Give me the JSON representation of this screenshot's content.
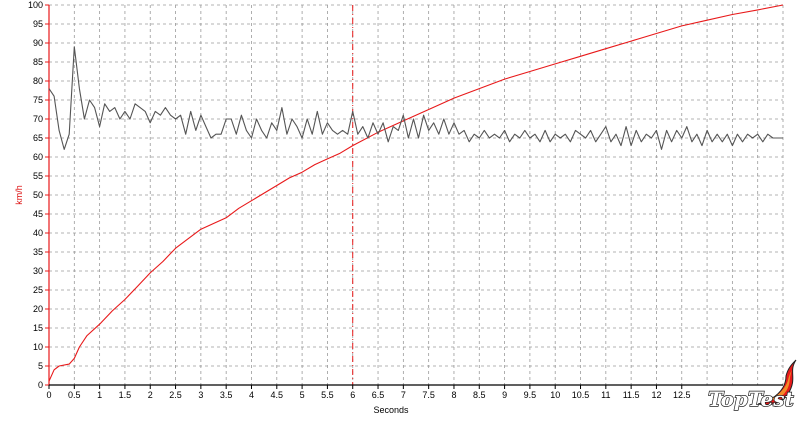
{
  "chart_data": {
    "type": "line",
    "xlabel": "Seconds",
    "ylabel": "km/h",
    "xlim": [
      0,
      14.5
    ],
    "ylim": [
      0,
      100
    ],
    "x_ticks": [
      "0",
      "0.5",
      "1",
      "1.5",
      "2",
      "2.5",
      "3",
      "3.5",
      "4",
      "4.5",
      "5",
      "5.5",
      "6",
      "6.5",
      "7",
      "7.5",
      "8",
      "8.5",
      "9",
      "9.5",
      "10",
      "10.5",
      "11",
      "11.5",
      "12",
      "12.5"
    ],
    "y_ticks": [
      "0",
      "5",
      "10",
      "15",
      "20",
      "25",
      "30",
      "35",
      "40",
      "45",
      "50",
      "55",
      "60",
      "65",
      "70",
      "75",
      "80",
      "85",
      "90",
      "95",
      "100"
    ],
    "grid": true,
    "marker_x": 6,
    "series": [
      {
        "color": "#e8191a",
        "x": [
          0,
          0.1,
          0.2,
          0.4,
          0.5,
          0.6,
          0.75,
          1,
          1.25,
          1.5,
          1.75,
          2,
          2.25,
          2.5,
          2.75,
          3,
          3.25,
          3.5,
          3.75,
          4,
          4.25,
          4.5,
          4.75,
          5,
          5.25,
          5.5,
          5.75,
          6,
          6.5,
          7,
          7.5,
          8,
          8.5,
          9,
          9.5,
          10,
          10.5,
          11,
          11.5,
          12,
          12.5,
          13,
          13.5,
          14,
          14.5
        ],
        "y": [
          1,
          4,
          5,
          5.5,
          7,
          10,
          13,
          16,
          19.5,
          22.5,
          26,
          29.5,
          32.5,
          36,
          38.5,
          41,
          42.5,
          44,
          46.5,
          48.5,
          50.5,
          52.5,
          54.5,
          56,
          58,
          59.5,
          61,
          63,
          66.5,
          69.5,
          72.5,
          75.5,
          78,
          80.5,
          82.5,
          84.5,
          86.5,
          88.5,
          90.5,
          92.5,
          94.5,
          96,
          97.5,
          98.7,
          100
        ]
      },
      {
        "color": "#555555",
        "x": [
          0,
          0.1,
          0.2,
          0.3,
          0.4,
          0.5,
          0.6,
          0.7,
          0.8,
          0.9,
          1,
          1.1,
          1.2,
          1.3,
          1.4,
          1.5,
          1.6,
          1.7,
          1.8,
          1.9,
          2,
          2.1,
          2.2,
          2.3,
          2.4,
          2.5,
          2.6,
          2.7,
          2.8,
          2.9,
          3,
          3.1,
          3.2,
          3.3,
          3.4,
          3.5,
          3.6,
          3.7,
          3.8,
          3.9,
          4,
          4.1,
          4.2,
          4.3,
          4.4,
          4.5,
          4.6,
          4.7,
          4.8,
          4.9,
          5,
          5.1,
          5.2,
          5.3,
          5.4,
          5.5,
          5.6,
          5.7,
          5.8,
          5.9,
          6,
          6.1,
          6.2,
          6.3,
          6.4,
          6.5,
          6.6,
          6.7,
          6.8,
          6.9,
          7,
          7.1,
          7.2,
          7.3,
          7.4,
          7.5,
          7.6,
          7.7,
          7.8,
          7.9,
          8,
          8.1,
          8.2,
          8.3,
          8.4,
          8.5,
          8.6,
          8.7,
          8.8,
          8.9,
          9,
          9.1,
          9.2,
          9.3,
          9.4,
          9.5,
          9.6,
          9.7,
          9.8,
          9.9,
          10,
          10.1,
          10.2,
          10.3,
          10.4,
          10.5,
          10.6,
          10.7,
          10.8,
          10.9,
          11,
          11.1,
          11.2,
          11.3,
          11.4,
          11.5,
          11.6,
          11.7,
          11.8,
          11.9,
          12,
          12.1,
          12.2,
          12.3,
          12.4,
          12.5,
          12.6,
          12.7,
          12.8,
          12.9,
          13,
          13.1,
          13.2,
          13.3,
          13.4,
          13.5,
          13.6,
          13.7,
          13.8,
          13.9,
          14,
          14.1,
          14.2,
          14.3,
          14.4,
          14.5
        ],
        "y": [
          78,
          76,
          67,
          62,
          66,
          89,
          78,
          70,
          75,
          73,
          68,
          74,
          72,
          73,
          70,
          72,
          70,
          74,
          73,
          72,
          69,
          72,
          71,
          73,
          71,
          70,
          71,
          66,
          72,
          67,
          71,
          68,
          65,
          66,
          66,
          70,
          70,
          66,
          71,
          67,
          65,
          70,
          67,
          65,
          69,
          67,
          73,
          66,
          70,
          68,
          65,
          70,
          66,
          72,
          66,
          69,
          67,
          66,
          67,
          66,
          72,
          66,
          68,
          65,
          69,
          66,
          69,
          64,
          68,
          67,
          71,
          65,
          70,
          65,
          71,
          67,
          69,
          66,
          70,
          66,
          69,
          66,
          67,
          64,
          66,
          65,
          67,
          65,
          66,
          65,
          67,
          64,
          66,
          65,
          67,
          65,
          66,
          64,
          67,
          64,
          66,
          65,
          66,
          64,
          67,
          66,
          65,
          67,
          64,
          66,
          68,
          64,
          66,
          63,
          68,
          63,
          67,
          64,
          66,
          65,
          67,
          62,
          67,
          64,
          67,
          65,
          68,
          64,
          66,
          63,
          67,
          64,
          66,
          64,
          66,
          63,
          66,
          64,
          66,
          65,
          66,
          64,
          66,
          65,
          65,
          65
        ]
      }
    ]
  },
  "logo": {
    "text": "TopTest",
    "colors": {
      "flame": "#e8191a",
      "flame_inner": "#f28c28",
      "text": "#ffffff",
      "outline": "#222222"
    }
  }
}
